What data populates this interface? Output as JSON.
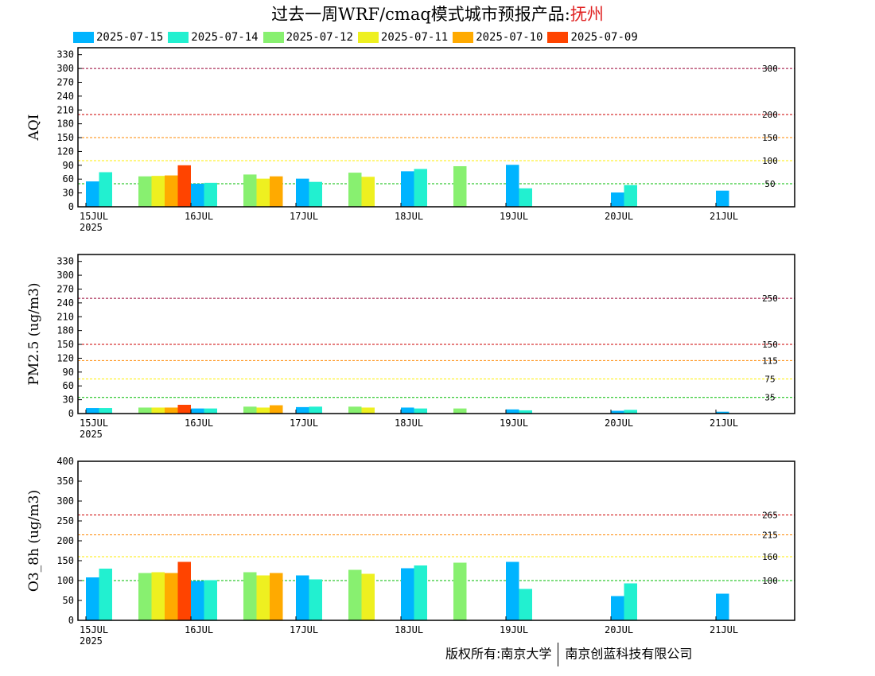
{
  "title": {
    "text": "过去一周WRF/cmaq模式城市预报产品:",
    "city": "抚州",
    "city_color": "#e02020"
  },
  "legend": [
    {
      "label": "2025-07-15",
      "color": "#00b4ff"
    },
    {
      "label": "2025-07-14",
      "color": "#22f0d0"
    },
    {
      "label": "2025-07-12",
      "color": "#88f070"
    },
    {
      "label": "2025-07-11",
      "color": "#eef020"
    },
    {
      "label": "2025-07-10",
      "color": "#ffaa00"
    },
    {
      "label": "2025-07-09",
      "color": "#ff4400"
    }
  ],
  "footer": {
    "left": "版权所有:南京大学",
    "right": "南京创蓝科技有限公司"
  },
  "chart_data": [
    {
      "type": "bar",
      "ylabel": "AQI",
      "ylim": [
        0,
        345
      ],
      "yticks": [
        0,
        30,
        60,
        90,
        120,
        150,
        180,
        210,
        240,
        270,
        300,
        330
      ],
      "x_tick_labels": [
        "15JUL",
        "16JUL",
        "17JUL",
        "18JUL",
        "19JUL",
        "20JUL",
        "21JUL"
      ],
      "x_year_label": "2025",
      "thresholds": [
        {
          "value": 300,
          "label": "300",
          "color": "#990033"
        },
        {
          "value": 200,
          "label": "200",
          "color": "#cc0000"
        },
        {
          "value": 150,
          "label": "150",
          "color": "#ff8800"
        },
        {
          "value": 100,
          "label": "100",
          "color": "#ffee00"
        },
        {
          "value": 50,
          "label": "50",
          "color": "#00bb00"
        }
      ],
      "groups": [
        {
          "day": 0,
          "offset": 0.0,
          "bars": [
            {
              "s": 0,
              "v": 55
            },
            {
              "s": 1,
              "v": 75
            }
          ]
        },
        {
          "day": 0,
          "offset": 0.5,
          "bars": [
            {
              "s": 2,
              "v": 66
            },
            {
              "s": 3,
              "v": 67
            },
            {
              "s": 4,
              "v": 68
            },
            {
              "s": 5,
              "v": 90
            }
          ]
        },
        {
          "day": 1,
          "offset": 0.0,
          "bars": [
            {
              "s": 0,
              "v": 50
            },
            {
              "s": 1,
              "v": 52
            }
          ]
        },
        {
          "day": 1,
          "offset": 0.5,
          "bars": [
            {
              "s": 2,
              "v": 70
            },
            {
              "s": 3,
              "v": 61
            },
            {
              "s": 4,
              "v": 66
            }
          ]
        },
        {
          "day": 2,
          "offset": 0.0,
          "bars": [
            {
              "s": 0,
              "v": 61
            },
            {
              "s": 1,
              "v": 54
            }
          ]
        },
        {
          "day": 2,
          "offset": 0.5,
          "bars": [
            {
              "s": 2,
              "v": 74
            },
            {
              "s": 3,
              "v": 65
            }
          ]
        },
        {
          "day": 3,
          "offset": 0.0,
          "bars": [
            {
              "s": 0,
              "v": 77
            },
            {
              "s": 1,
              "v": 82
            }
          ]
        },
        {
          "day": 3,
          "offset": 0.5,
          "bars": [
            {
              "s": 2,
              "v": 88
            }
          ]
        },
        {
          "day": 4,
          "offset": 0.0,
          "bars": [
            {
              "s": 0,
              "v": 91
            },
            {
              "s": 1,
              "v": 40
            }
          ]
        },
        {
          "day": 5,
          "offset": 0.0,
          "bars": [
            {
              "s": 0,
              "v": 31
            },
            {
              "s": 1,
              "v": 47
            }
          ]
        },
        {
          "day": 6,
          "offset": 0.0,
          "bars": [
            {
              "s": 0,
              "v": 35
            }
          ]
        }
      ]
    },
    {
      "type": "bar",
      "ylabel": "PM2.5 (ug/m3)",
      "ylim": [
        0,
        345
      ],
      "yticks": [
        0,
        30,
        60,
        90,
        120,
        150,
        180,
        210,
        240,
        270,
        300,
        330
      ],
      "x_tick_labels": [
        "15JUL",
        "16JUL",
        "17JUL",
        "18JUL",
        "19JUL",
        "20JUL",
        "21JUL"
      ],
      "x_year_label": "2025",
      "thresholds": [
        {
          "value": 250,
          "label": "250",
          "color": "#990033"
        },
        {
          "value": 150,
          "label": "150",
          "color": "#cc0000"
        },
        {
          "value": 115,
          "label": "115",
          "color": "#ff8800"
        },
        {
          "value": 75,
          "label": "75",
          "color": "#ffee00"
        },
        {
          "value": 35,
          "label": "35",
          "color": "#00bb00"
        }
      ],
      "groups": [
        {
          "day": 0,
          "offset": 0.0,
          "bars": [
            {
              "s": 0,
              "v": 12
            },
            {
              "s": 1,
              "v": 12
            }
          ]
        },
        {
          "day": 0,
          "offset": 0.5,
          "bars": [
            {
              "s": 2,
              "v": 13
            },
            {
              "s": 3,
              "v": 13
            },
            {
              "s": 4,
              "v": 13
            },
            {
              "s": 5,
              "v": 19
            }
          ]
        },
        {
          "day": 1,
          "offset": 0.0,
          "bars": [
            {
              "s": 0,
              "v": 11
            },
            {
              "s": 1,
              "v": 11
            }
          ]
        },
        {
          "day": 1,
          "offset": 0.5,
          "bars": [
            {
              "s": 2,
              "v": 15
            },
            {
              "s": 3,
              "v": 13
            },
            {
              "s": 4,
              "v": 18
            }
          ]
        },
        {
          "day": 2,
          "offset": 0.0,
          "bars": [
            {
              "s": 0,
              "v": 14
            },
            {
              "s": 1,
              "v": 15
            }
          ]
        },
        {
          "day": 2,
          "offset": 0.5,
          "bars": [
            {
              "s": 2,
              "v": 15
            },
            {
              "s": 3,
              "v": 13
            }
          ]
        },
        {
          "day": 3,
          "offset": 0.0,
          "bars": [
            {
              "s": 0,
              "v": 13
            },
            {
              "s": 1,
              "v": 11
            }
          ]
        },
        {
          "day": 3,
          "offset": 0.5,
          "bars": [
            {
              "s": 2,
              "v": 11
            }
          ]
        },
        {
          "day": 4,
          "offset": 0.0,
          "bars": [
            {
              "s": 0,
              "v": 9
            },
            {
              "s": 1,
              "v": 7
            }
          ]
        },
        {
          "day": 5,
          "offset": 0.0,
          "bars": [
            {
              "s": 0,
              "v": 6
            },
            {
              "s": 1,
              "v": 8
            }
          ]
        },
        {
          "day": 6,
          "offset": 0.0,
          "bars": [
            {
              "s": 0,
              "v": 4
            }
          ]
        }
      ]
    },
    {
      "type": "bar",
      "ylabel": "O3_8h (ug/m3)",
      "ylim": [
        0,
        400
      ],
      "yticks": [
        0,
        50,
        100,
        150,
        200,
        250,
        300,
        350,
        400
      ],
      "x_tick_labels": [
        "15JUL",
        "16JUL",
        "17JUL",
        "18JUL",
        "19JUL",
        "20JUL",
        "21JUL"
      ],
      "x_year_label": "2025",
      "thresholds": [
        {
          "value": 265,
          "label": "265",
          "color": "#cc0000"
        },
        {
          "value": 215,
          "label": "215",
          "color": "#ff8800"
        },
        {
          "value": 160,
          "label": "160",
          "color": "#ffee00"
        },
        {
          "value": 100,
          "label": "100",
          "color": "#00bb00"
        }
      ],
      "groups": [
        {
          "day": 0,
          "offset": 0.0,
          "bars": [
            {
              "s": 0,
              "v": 108
            },
            {
              "s": 1,
              "v": 130
            }
          ]
        },
        {
          "day": 0,
          "offset": 0.5,
          "bars": [
            {
              "s": 2,
              "v": 119
            },
            {
              "s": 3,
              "v": 121
            },
            {
              "s": 4,
              "v": 119
            },
            {
              "s": 5,
              "v": 147
            }
          ]
        },
        {
          "day": 1,
          "offset": 0.0,
          "bars": [
            {
              "s": 0,
              "v": 99
            },
            {
              "s": 1,
              "v": 101
            }
          ]
        },
        {
          "day": 1,
          "offset": 0.5,
          "bars": [
            {
              "s": 2,
              "v": 121
            },
            {
              "s": 3,
              "v": 113
            },
            {
              "s": 4,
              "v": 119
            }
          ]
        },
        {
          "day": 2,
          "offset": 0.0,
          "bars": [
            {
              "s": 0,
              "v": 113
            },
            {
              "s": 1,
              "v": 103
            }
          ]
        },
        {
          "day": 2,
          "offset": 0.5,
          "bars": [
            {
              "s": 2,
              "v": 127
            },
            {
              "s": 3,
              "v": 117
            }
          ]
        },
        {
          "day": 3,
          "offset": 0.0,
          "bars": [
            {
              "s": 0,
              "v": 131
            },
            {
              "s": 1,
              "v": 138
            }
          ]
        },
        {
          "day": 3,
          "offset": 0.5,
          "bars": [
            {
              "s": 2,
              "v": 145
            }
          ]
        },
        {
          "day": 4,
          "offset": 0.0,
          "bars": [
            {
              "s": 0,
              "v": 147
            },
            {
              "s": 1,
              "v": 79
            }
          ]
        },
        {
          "day": 5,
          "offset": 0.0,
          "bars": [
            {
              "s": 0,
              "v": 61
            },
            {
              "s": 1,
              "v": 93
            }
          ]
        },
        {
          "day": 6,
          "offset": 0.0,
          "bars": [
            {
              "s": 0,
              "v": 67
            }
          ]
        }
      ]
    }
  ]
}
